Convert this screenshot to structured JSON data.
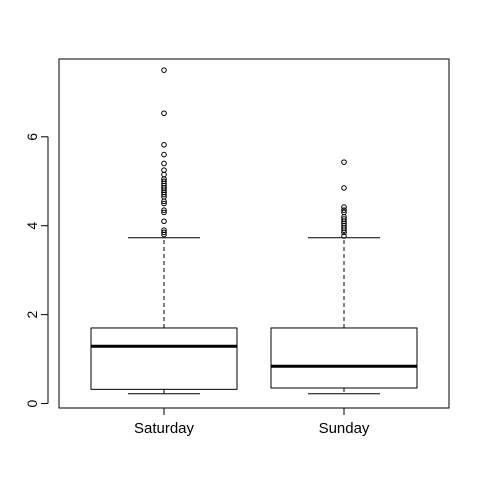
{
  "chart_data": {
    "type": "boxplot",
    "title": "",
    "xlabel": "",
    "ylabel": "",
    "categories": [
      "Saturday",
      "Sunday"
    ],
    "yticks": [
      0,
      2,
      4,
      6
    ],
    "ylim": [
      -0.1,
      7.75
    ],
    "grid": false,
    "legend": "none",
    "colors": {
      "line": "#000000",
      "background": "#ffffff"
    },
    "boxes": [
      {
        "name": "Saturday",
        "whisker_low": 0.22,
        "q1": 0.32,
        "median": 1.29,
        "q3": 1.7,
        "whisker_high": 3.73,
        "outliers": [
          3.8,
          3.85,
          3.9,
          4.1,
          4.3,
          4.35,
          4.5,
          4.55,
          4.65,
          4.7,
          4.75,
          4.8,
          4.85,
          4.9,
          4.95,
          5.0,
          5.05,
          5.15,
          5.25,
          5.4,
          5.6,
          5.82,
          6.53,
          7.5
        ]
      },
      {
        "name": "Sunday",
        "whisker_low": 0.22,
        "q1": 0.35,
        "median": 0.84,
        "q3": 1.7,
        "whisker_high": 3.73,
        "outliers": [
          3.77,
          3.85,
          3.9,
          3.95,
          4.0,
          4.05,
          4.1,
          4.15,
          4.2,
          4.3,
          4.35,
          4.42,
          4.85,
          5.43
        ]
      }
    ]
  }
}
